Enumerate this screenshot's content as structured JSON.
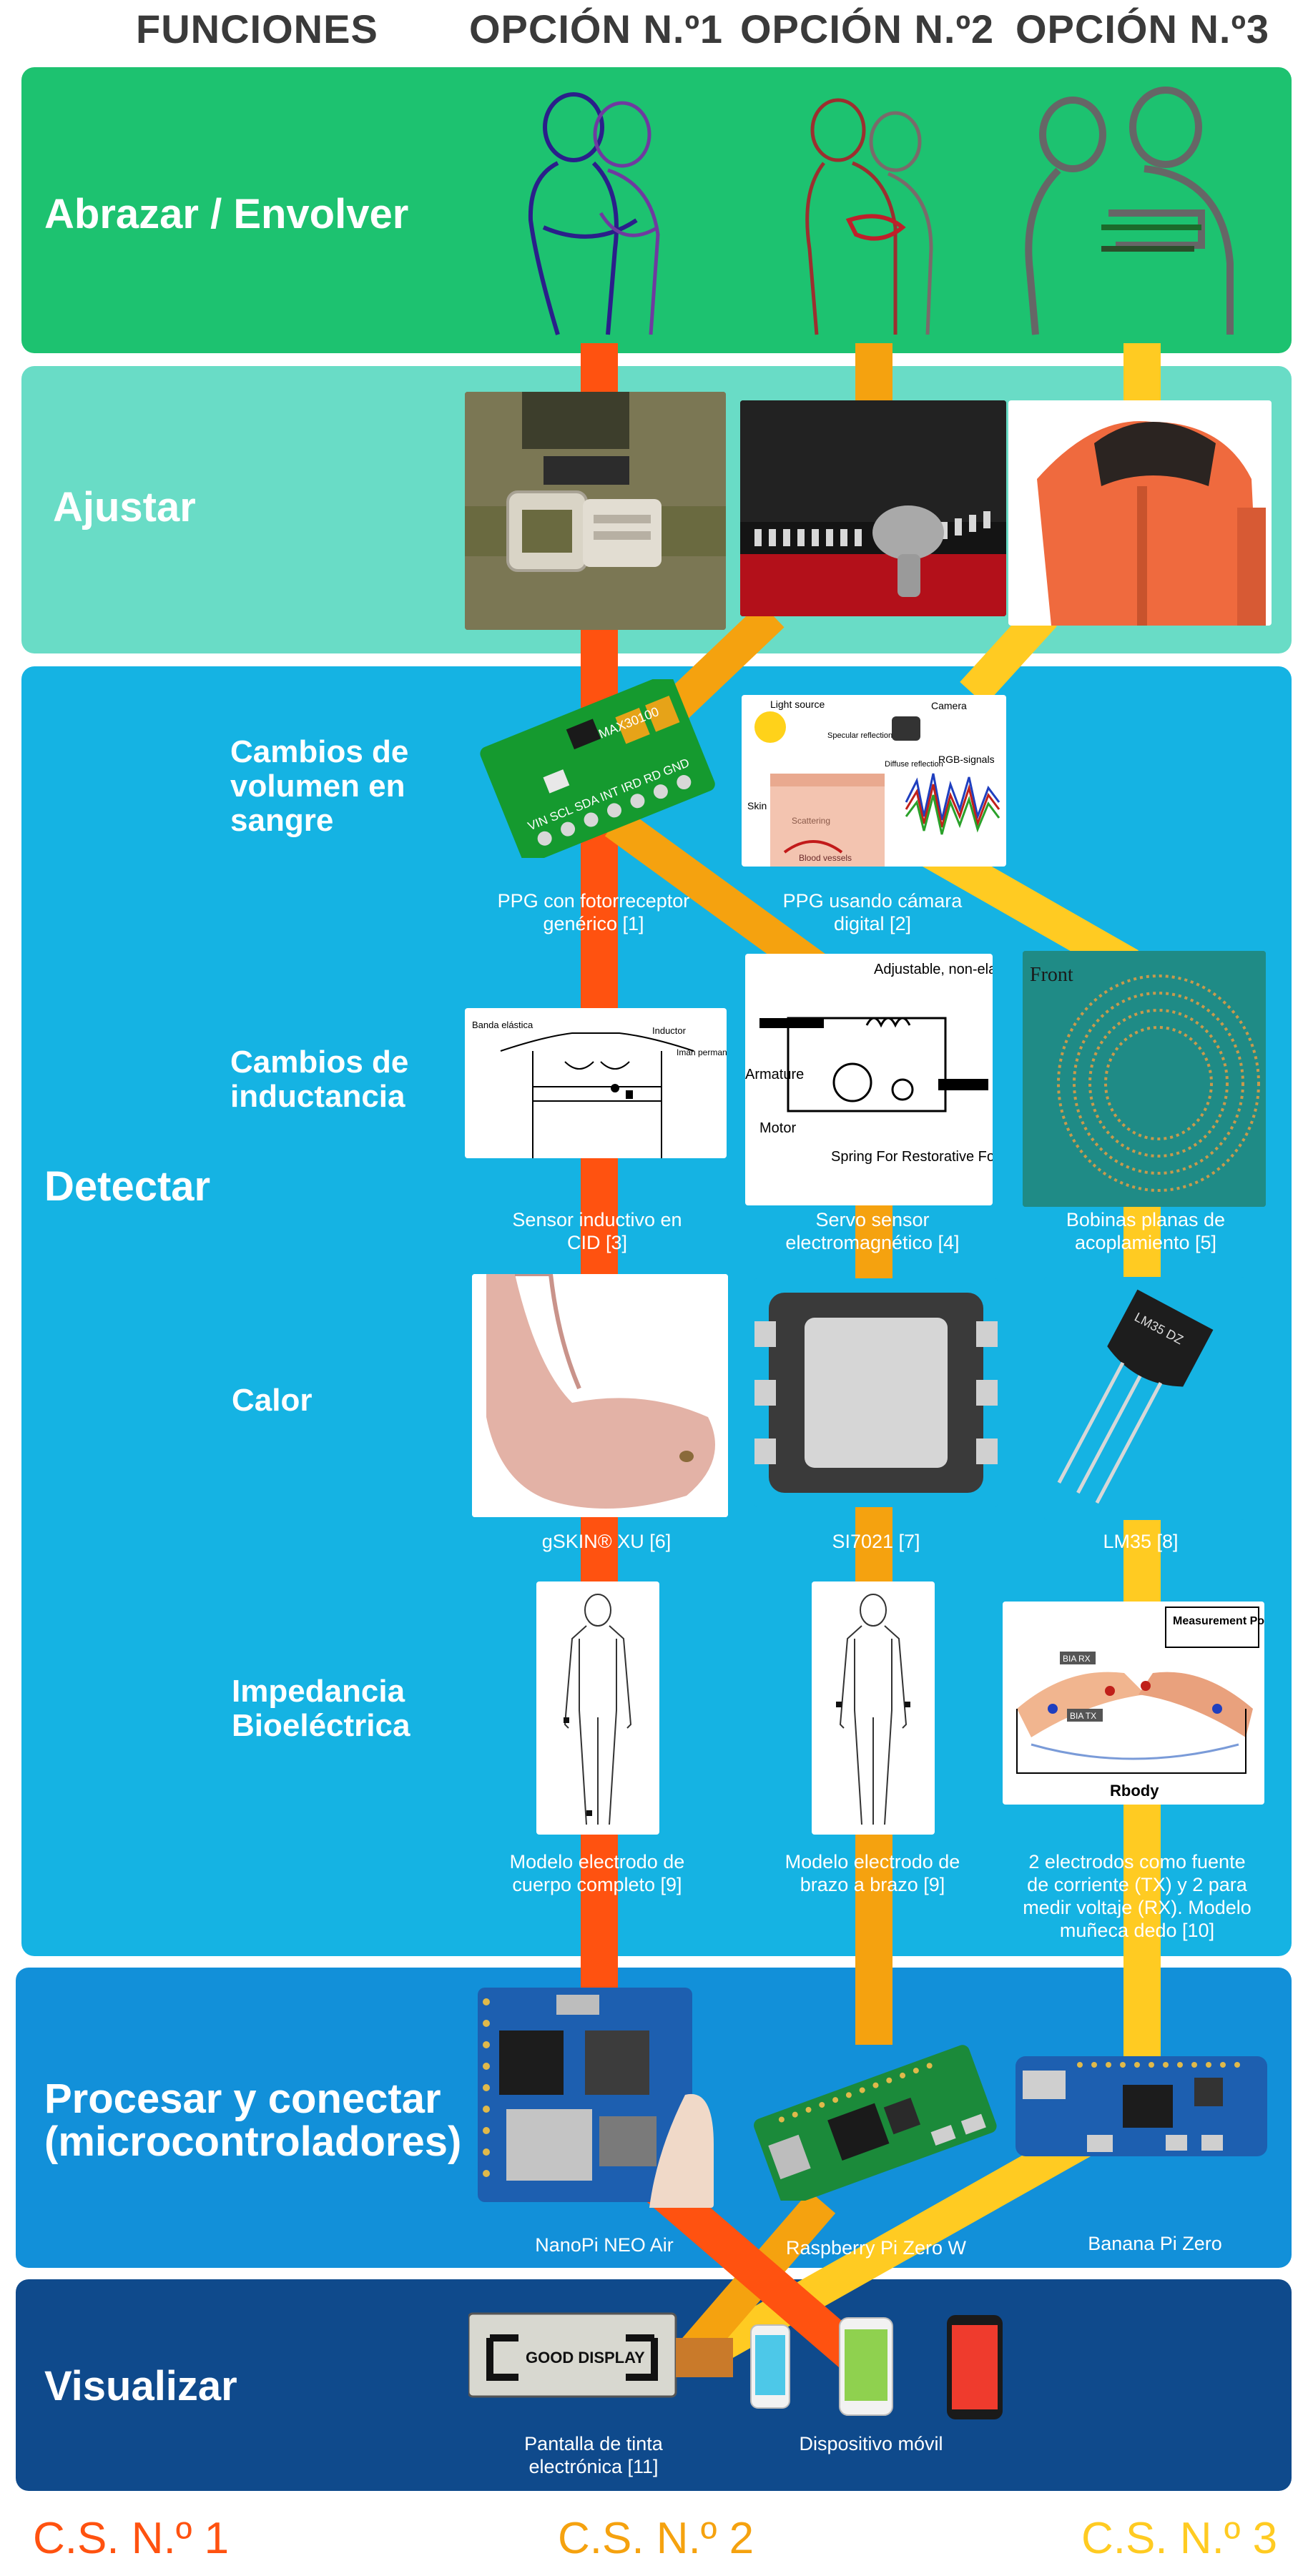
{
  "header": {
    "functions": "FUNCIONES",
    "option1": "OPCIÓN N.º1",
    "option2": "OPCIÓN N.º2",
    "option3": "OPCIÓN N.º3"
  },
  "colors": {
    "hug_band": "#1dc270",
    "adjust_band": "#69dcc6",
    "detect_band": "#15b3e3",
    "process_band": "#1290d9",
    "display_band": "#0f4a8c",
    "path1": "#ff5210",
    "path2": "#f5a20f",
    "path3": "#ffcb22"
  },
  "bands": {
    "hug": "Abrazar / Envolver",
    "adjust": "Ajustar",
    "detect": "Detectar",
    "process_line1": "Procesar y conectar",
    "process_line2": "(microcontroladores)",
    "display": "Visualizar"
  },
  "rows": {
    "blood": [
      "Cambios de",
      "volumen en",
      "sangre"
    ],
    "inductance": [
      "Cambios de",
      "inductancia"
    ],
    "heat": [
      "Calor"
    ],
    "impedance": [
      "Impedancia",
      "Bioeléctrica"
    ]
  },
  "captions": {
    "ppg_generic": [
      "PPG con fotorreceptor",
      "genérico [1]"
    ],
    "ppg_camera": [
      "PPG usando cámara",
      "digital [2]"
    ],
    "inductive": [
      "Sensor inductivo en",
      "CID [3]"
    ],
    "servo": [
      "Servo sensor",
      "electromagnético [4]"
    ],
    "coils": [
      "Bobinas planas de",
      "acoplamiento [5]"
    ],
    "gskin": [
      "gSKIN® XU [6]"
    ],
    "si7021": [
      "SI7021 [7]"
    ],
    "lm35": [
      "LM35 [8]"
    ],
    "full_body": [
      "Modelo electrodo de",
      "cuerpo completo [9]"
    ],
    "arm_arm": [
      "Modelo electrodo de",
      "brazo a brazo [9]"
    ],
    "wrist_finger": [
      "2 electrodos como fuente",
      "de corriente (TX) y 2 para",
      "medir voltaje (RX). Modelo",
      "muñeca dedo [10]"
    ],
    "nanopi": [
      "NanoPi NEO Air"
    ],
    "rpi": [
      "Raspberry Pi Zero W"
    ],
    "banana": [
      "Banana Pi Zero"
    ],
    "eink": [
      "Pantalla de tinta",
      "electrónica [11]"
    ],
    "mobile": [
      "Dispositivo móvil"
    ]
  },
  "image_text": {
    "ppg_chip": "MAX30100",
    "ppg_pins": "VIN SCL SDA INT IRD RD GND",
    "light_source": "Light source",
    "camera": "Camera",
    "specular": "Specular reflection",
    "diffuse": "Diffuse reflection",
    "rgb": "RGB-signals",
    "skin": "Skin",
    "scattering": "Scattering",
    "vessels": "Blood vessels",
    "elastic_band": "Banda elástica",
    "inductor": "Inductor",
    "magnet": "Imán permanente",
    "adjustable_wire": "Adjustable, non-elastic wire",
    "armature": "Armature",
    "motor": "Motor",
    "spring": "Spring For Restorative Force",
    "front": "Front",
    "lm35_marking": "LM35 DZ",
    "measurement_point": "Measurement Point",
    "rx": "BIA RX",
    "tx": "BIA TX",
    "r_body": "Rbody",
    "good_display": "GOOD DISPLAY"
  },
  "footer": {
    "cs1": "C.S. N.º 1",
    "cs2": "C.S. N.º 2",
    "cs3": "C.S. N.º 3"
  }
}
